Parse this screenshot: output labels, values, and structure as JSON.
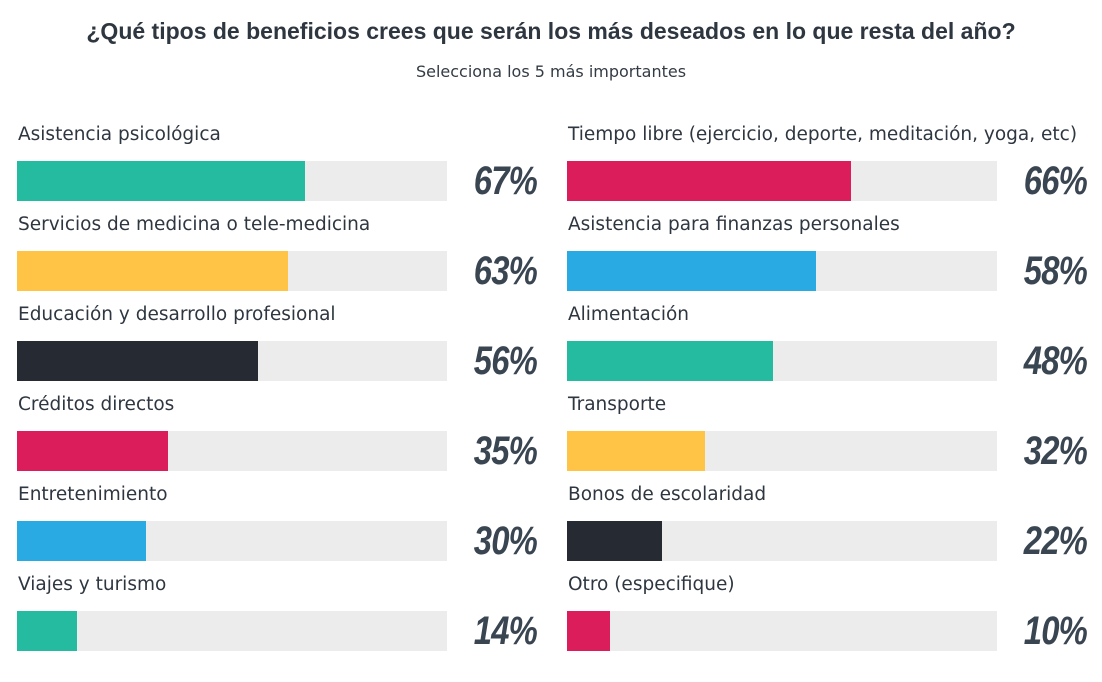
{
  "title": "¿Qué tipos de beneficios crees que serán los más deseados en lo que resta del año?",
  "subtitle": "Selecciona los 5 más importantes",
  "chart_data": {
    "type": "bar",
    "orientation": "horizontal",
    "title": "¿Qué tipos de beneficios crees que serán los más deseados en lo que resta del año?",
    "subtitle": "Selecciona los 5 más importantes",
    "xlim": [
      0,
      100
    ],
    "unit": "%",
    "grid": false,
    "legend": "none",
    "columns": [
      {
        "items": [
          {
            "label": "Asistencia psicológica",
            "value": 67,
            "display": "67%",
            "color": "#25bba1"
          },
          {
            "label": "Servicios de medicina o tele-medicina",
            "value": 63,
            "display": "63%",
            "color": "#ffc445"
          },
          {
            "label": "Educación y desarrollo profesional",
            "value": 56,
            "display": "56%",
            "color": "#252a33"
          },
          {
            "label": "Créditos directos",
            "value": 35,
            "display": "35%",
            "color": "#dc1d5b"
          },
          {
            "label": "Entretenimiento",
            "value": 30,
            "display": "30%",
            "color": "#2aaae2"
          },
          {
            "label": "Viajes y turismo",
            "value": 14,
            "display": "14%",
            "color": "#25bba1"
          }
        ]
      },
      {
        "items": [
          {
            "label": "Tiempo libre (ejercicio, deporte, meditación, yoga, etc)",
            "value": 66,
            "display": "66%",
            "color": "#dc1d5b"
          },
          {
            "label": "Asistencia para finanzas personales",
            "value": 58,
            "display": "58%",
            "color": "#2aaae2"
          },
          {
            "label": "Alimentación",
            "value": 48,
            "display": "48%",
            "color": "#25bba1"
          },
          {
            "label": "Transporte",
            "value": 32,
            "display": "32%",
            "color": "#ffc445"
          },
          {
            "label": "Bonos de escolaridad",
            "value": 22,
            "display": "22%",
            "color": "#252a33"
          },
          {
            "label": "Otro (especifique)",
            "value": 10,
            "display": "10%",
            "color": "#dc1d5b"
          }
        ]
      }
    ]
  },
  "colors": {
    "track": "#ececec",
    "text": "#2e3640",
    "percent": "#3a4552"
  }
}
